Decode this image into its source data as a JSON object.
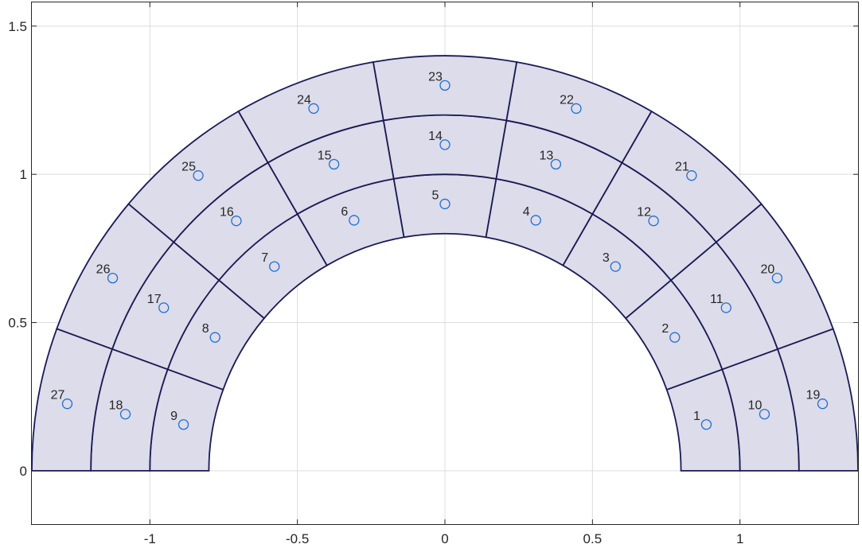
{
  "chart_data": {
    "type": "mesh",
    "title": "",
    "xlabel": "",
    "ylabel": "",
    "xlim": [
      -1.4,
      1.4
    ],
    "ylim": [
      -0.18,
      1.58
    ],
    "grid": true,
    "x_ticks": [
      -1,
      -0.5,
      0,
      0.5,
      1
    ],
    "x_tick_labels": [
      "-1",
      "-0.5",
      "0",
      "0.5",
      "1"
    ],
    "y_ticks": [
      0,
      0.5,
      1,
      1.5
    ],
    "y_tick_labels": [
      "0",
      "0.5",
      "1",
      "1.5"
    ],
    "mesh": {
      "shape": "half-annulus",
      "ring_radii": [
        0.8,
        1.0,
        1.2,
        1.4
      ],
      "angle_range_deg": [
        0,
        180
      ],
      "sectors_per_ring": 9,
      "fill_color": "#dcdcea",
      "edge_color": "#1a1a55"
    },
    "element_centers": [
      {
        "label": "1",
        "x": 0.886,
        "y": 0.156
      },
      {
        "label": "2",
        "x": 0.779,
        "y": 0.45
      },
      {
        "label": "3",
        "x": 0.578,
        "y": 0.689
      },
      {
        "label": "4",
        "x": 0.308,
        "y": 0.845
      },
      {
        "label": "5",
        "x": 0.0,
        "y": 0.9
      },
      {
        "label": "6",
        "x": -0.308,
        "y": 0.845
      },
      {
        "label": "7",
        "x": -0.578,
        "y": 0.689
      },
      {
        "label": "8",
        "x": -0.779,
        "y": 0.45
      },
      {
        "label": "9",
        "x": -0.886,
        "y": 0.156
      },
      {
        "label": "10",
        "x": 1.083,
        "y": 0.191
      },
      {
        "label": "11",
        "x": 0.953,
        "y": 0.55
      },
      {
        "label": "12",
        "x": 0.707,
        "y": 0.843
      },
      {
        "label": "13",
        "x": 0.376,
        "y": 1.034
      },
      {
        "label": "14",
        "x": 0.0,
        "y": 1.1
      },
      {
        "label": "15",
        "x": -0.376,
        "y": 1.034
      },
      {
        "label": "16",
        "x": -0.707,
        "y": 0.843
      },
      {
        "label": "17",
        "x": -0.953,
        "y": 0.55
      },
      {
        "label": "18",
        "x": -1.083,
        "y": 0.191
      },
      {
        "label": "19",
        "x": 1.28,
        "y": 0.226
      },
      {
        "label": "20",
        "x": 1.126,
        "y": 0.65
      },
      {
        "label": "21",
        "x": 0.836,
        "y": 0.996
      },
      {
        "label": "22",
        "x": 0.445,
        "y": 1.222
      },
      {
        "label": "23",
        "x": 0.0,
        "y": 1.3
      },
      {
        "label": "24",
        "x": -0.445,
        "y": 1.222
      },
      {
        "label": "25",
        "x": -0.836,
        "y": 0.996
      },
      {
        "label": "26",
        "x": -1.126,
        "y": 0.65
      },
      {
        "label": "27",
        "x": -1.28,
        "y": 0.226
      }
    ],
    "marker_color": "#1f6fd1"
  }
}
